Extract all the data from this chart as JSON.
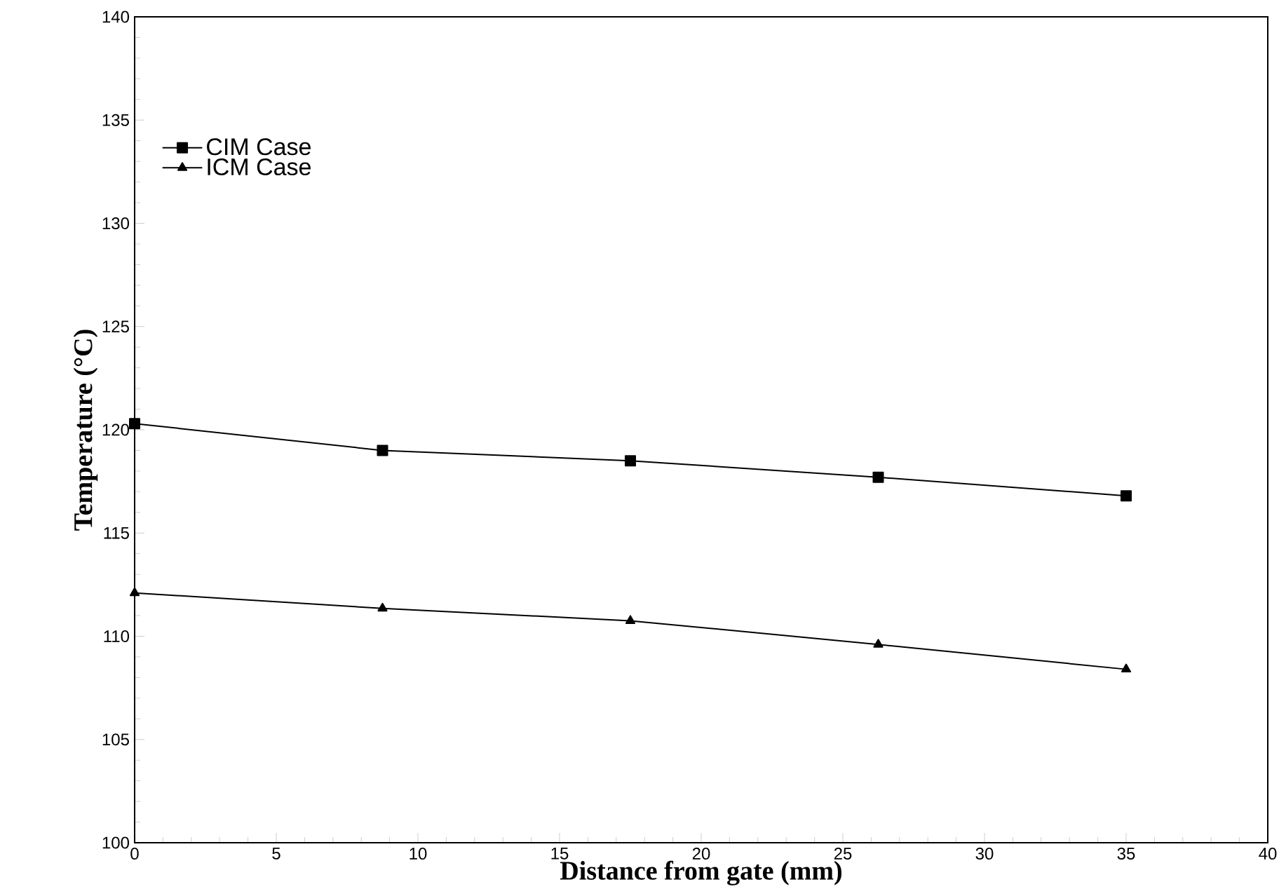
{
  "chart_data": {
    "type": "line",
    "xlabel": "Distance from gate (mm)",
    "ylabel": "Temperature (°C)",
    "x": [
      0,
      8.75,
      17.5,
      26.25,
      35
    ],
    "series": [
      {
        "name": "CIM Case",
        "color": "#000000",
        "marker": "square",
        "values": [
          120.3,
          119.0,
          118.5,
          117.7,
          116.8
        ]
      },
      {
        "name": "ICM Case",
        "color": "#000000",
        "marker": "triangle",
        "values": [
          112.1,
          111.35,
          110.75,
          109.6,
          108.4
        ]
      }
    ],
    "xlim": [
      0,
      40
    ],
    "ylim": [
      100,
      140
    ],
    "xticks": [
      0,
      5,
      10,
      15,
      20,
      25,
      30,
      35,
      40
    ],
    "yticks": [
      100,
      105,
      110,
      115,
      120,
      125,
      130,
      135,
      140
    ],
    "grid": false,
    "legend": "top left",
    "line_style": "solid"
  }
}
